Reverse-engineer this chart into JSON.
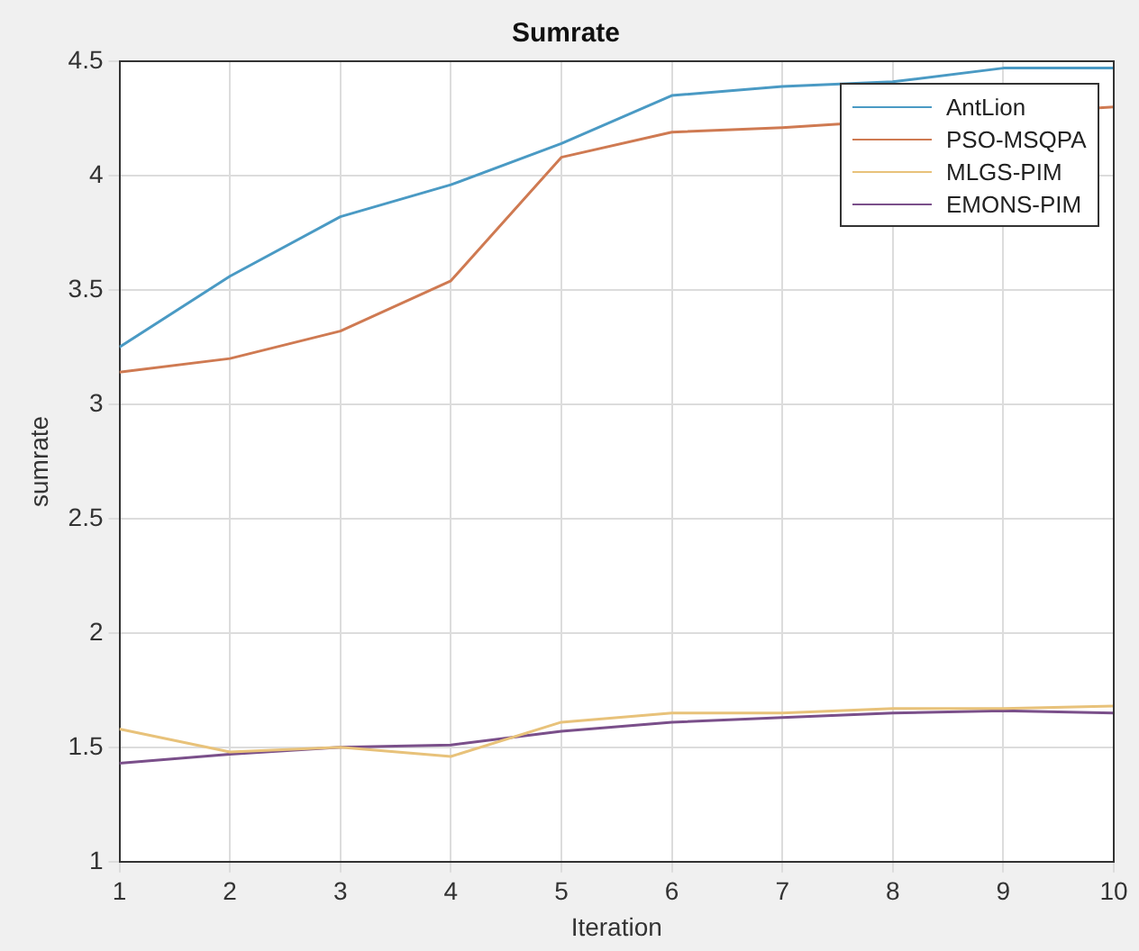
{
  "chart_data": {
    "type": "line",
    "title": "Sumrate",
    "xlabel": "Iteration",
    "ylabel": "sumrate",
    "x": [
      1,
      2,
      3,
      4,
      5,
      6,
      7,
      8,
      9,
      10
    ],
    "xlim": [
      1,
      10
    ],
    "xticks": [
      1,
      2,
      3,
      4,
      5,
      6,
      7,
      8,
      9,
      10
    ],
    "ylim": [
      1,
      4.5
    ],
    "yticks": [
      1,
      1.5,
      2,
      2.5,
      3,
      3.5,
      4,
      4.5
    ],
    "grid": true,
    "legend": "top right",
    "marker": "none",
    "line_style": "solid",
    "series": [
      {
        "name": "AntLion",
        "color": "#4a9ac4",
        "values": [
          3.25,
          3.56,
          3.82,
          3.96,
          4.14,
          4.35,
          4.39,
          4.41,
          4.47,
          4.47
        ]
      },
      {
        "name": "PSO-MSQPA",
        "color": "#cf7a52",
        "values": [
          3.14,
          3.2,
          3.32,
          3.54,
          4.08,
          4.19,
          4.21,
          null,
          null,
          4.3
        ]
      },
      {
        "name": "MLGS-PIM",
        "color": "#e8c27a",
        "values": [
          1.58,
          1.48,
          1.5,
          1.46,
          1.61,
          1.65,
          1.65,
          1.67,
          1.67,
          1.68
        ]
      },
      {
        "name": "EMONS-PIM",
        "color": "#7a4f8a",
        "values": [
          1.43,
          1.47,
          1.5,
          1.51,
          1.57,
          1.61,
          1.63,
          1.65,
          1.66,
          1.65
        ]
      }
    ]
  }
}
